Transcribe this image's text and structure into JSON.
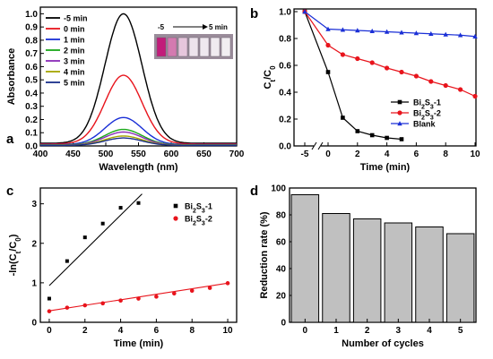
{
  "panels": {
    "a": {
      "letter": "a"
    },
    "b": {
      "letter": "b"
    },
    "c": {
      "letter": "c"
    },
    "d": {
      "letter": "d"
    }
  },
  "chart_data": [
    {
      "id": "a",
      "type": "line",
      "xlabel": "Wavelength (nm)",
      "ylabel": "Absorbance",
      "xlim": [
        400,
        700
      ],
      "ylim": [
        0,
        1.05
      ],
      "xticks": [
        400,
        450,
        500,
        550,
        600,
        650,
        700
      ],
      "yticks": [
        0.0,
        0.1,
        0.2,
        0.3,
        0.4,
        0.5,
        0.6,
        0.7,
        0.8,
        0.9,
        1.0
      ],
      "peak_x": 527,
      "legend_position": "top-left",
      "inset": {
        "left_label": "-5",
        "right_label": "5 min"
      },
      "series": [
        {
          "name": "-5 min",
          "color": "#000000",
          "peak": 1.0,
          "base": 0.02
        },
        {
          "name": "0 min",
          "color": "#e8141c",
          "peak": 0.535,
          "base": 0.015
        },
        {
          "name": "1 min",
          "color": "#1a2fd6",
          "peak": 0.215,
          "base": 0.01
        },
        {
          "name": "2 min",
          "color": "#1aa81a",
          "peak": 0.125,
          "base": 0.008
        },
        {
          "name": "3 min",
          "color": "#8b2bb8",
          "peak": 0.105,
          "base": 0.006
        },
        {
          "name": "4 min",
          "color": "#a6a600",
          "peak": 0.075,
          "base": 0.005
        },
        {
          "name": "5 min",
          "color": "#1a2f8a",
          "peak": 0.06,
          "base": 0.004
        }
      ]
    },
    {
      "id": "b",
      "type": "line",
      "xlabel": "Time (min)",
      "ylabel": "Ct/C0",
      "xticks": [
        -5,
        0,
        2,
        4,
        6,
        8,
        10
      ],
      "yticks": [
        0.0,
        0.2,
        0.4,
        0.6,
        0.8,
        1.0
      ],
      "ylim": [
        0,
        1.02
      ],
      "axis_break": true,
      "legend_position": "bottom-right",
      "series": [
        {
          "name": "Bi2S3-1",
          "color": "#000000",
          "marker": "square",
          "x": [
            -5,
            0,
            1,
            2,
            3,
            4,
            5
          ],
          "y": [
            1.0,
            0.55,
            0.21,
            0.11,
            0.08,
            0.06,
            0.05
          ]
        },
        {
          "name": "Bi2S3-2",
          "color": "#e8141c",
          "marker": "circle",
          "x": [
            -5,
            0,
            1,
            2,
            3,
            4,
            5,
            6,
            7,
            8,
            9,
            10
          ],
          "y": [
            1.0,
            0.75,
            0.68,
            0.65,
            0.62,
            0.58,
            0.55,
            0.52,
            0.48,
            0.45,
            0.42,
            0.37
          ]
        },
        {
          "name": "Blank",
          "color": "#1a2fd6",
          "marker": "triangle",
          "x": [
            -5,
            0,
            1,
            2,
            3,
            4,
            5,
            6,
            7,
            8,
            9,
            10
          ],
          "y": [
            1.0,
            0.87,
            0.865,
            0.86,
            0.855,
            0.85,
            0.845,
            0.84,
            0.835,
            0.83,
            0.825,
            0.815
          ]
        }
      ]
    },
    {
      "id": "c",
      "type": "scatter",
      "xlabel": "Time (min)",
      "ylabel": "-ln(Ct/C0)",
      "xlim": [
        -0.5,
        10.5
      ],
      "ylim": [
        0,
        3.4
      ],
      "xticks": [
        0,
        2,
        4,
        6,
        8,
        10
      ],
      "yticks": [
        0,
        1,
        2,
        3
      ],
      "legend_position": "top-right",
      "series": [
        {
          "name": "Bi2S3-1",
          "color": "#000000",
          "marker": "square",
          "x": [
            0,
            1,
            2,
            3,
            4,
            5
          ],
          "y": [
            0.6,
            1.55,
            2.15,
            2.5,
            2.9,
            3.02
          ],
          "fit": {
            "x": [
              0,
              5.2
            ],
            "y": [
              0.93,
              3.25
            ]
          }
        },
        {
          "name": "Bi2S3-2",
          "color": "#e8141c",
          "marker": "circle",
          "x": [
            0,
            1,
            2,
            3,
            4,
            5,
            6,
            7,
            8,
            9,
            10
          ],
          "y": [
            0.28,
            0.37,
            0.43,
            0.48,
            0.55,
            0.6,
            0.65,
            0.73,
            0.8,
            0.87,
            0.99
          ],
          "fit": {
            "x": [
              0,
              10
            ],
            "y": [
              0.29,
              0.99
            ]
          }
        }
      ]
    },
    {
      "id": "d",
      "type": "bar",
      "xlabel": "Number of cycles",
      "ylabel": "Reduction rate (%)",
      "ylim": [
        0,
        100
      ],
      "yticks": [
        0,
        20,
        40,
        60,
        80,
        100
      ],
      "categories": [
        "0",
        "1",
        "2",
        "3",
        "4",
        "5"
      ],
      "values": [
        95,
        81,
        77,
        74,
        71,
        66
      ],
      "bar_color": "#c0c0c0"
    }
  ]
}
